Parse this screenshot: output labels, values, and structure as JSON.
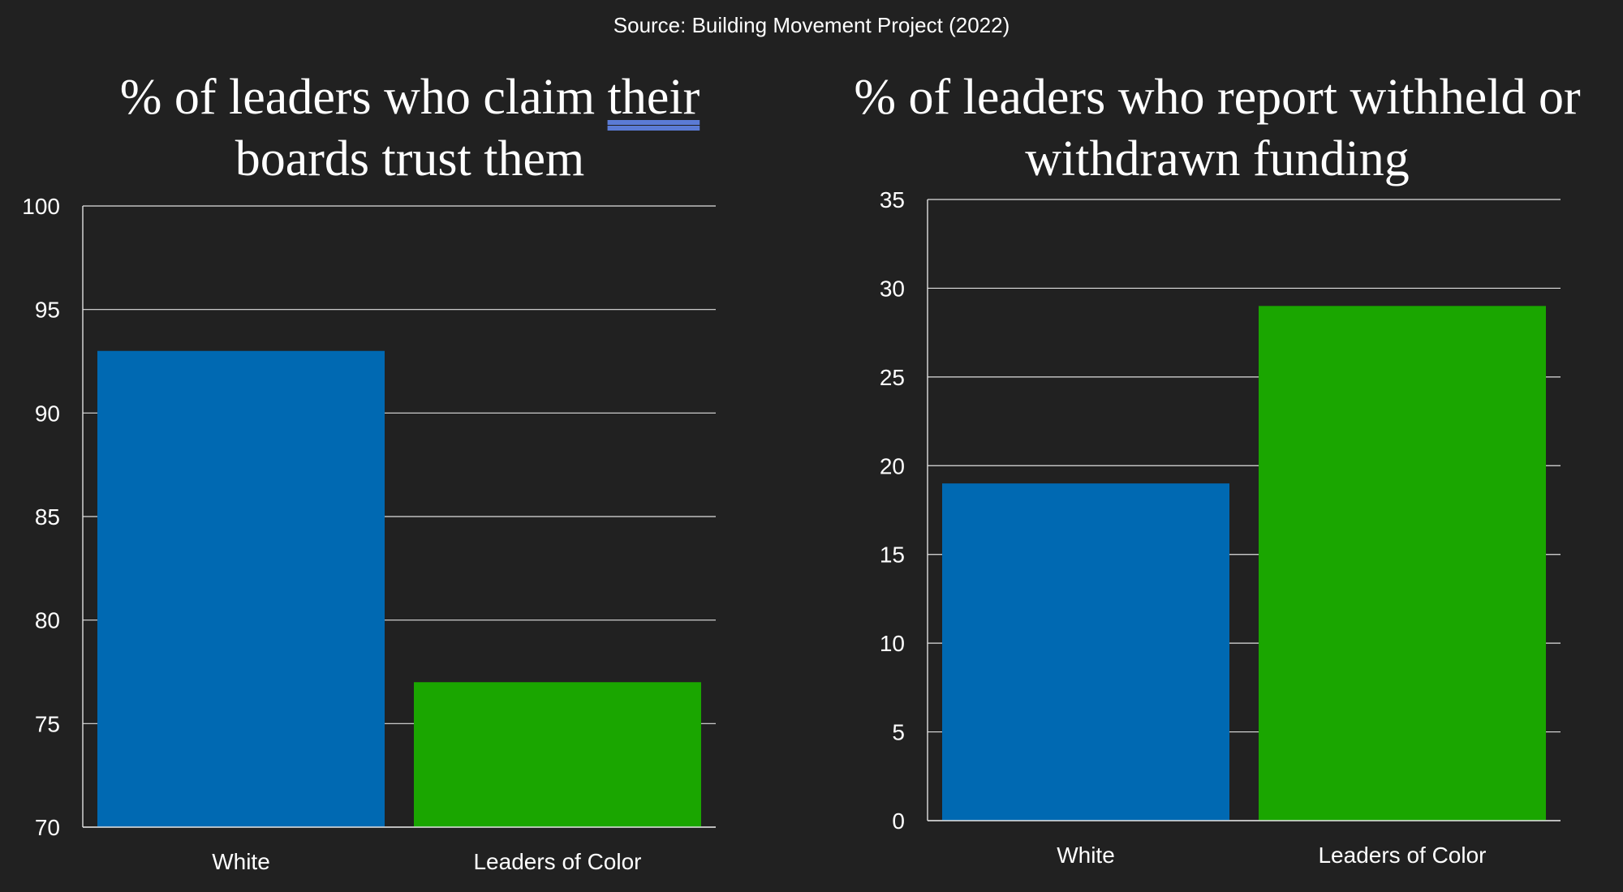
{
  "source": "Source: Building Movement Project (2022)",
  "colors": {
    "background": "#212121",
    "white_bar": "#0069b2",
    "color_bar": "#1aa600",
    "grid": "#e0e0e0",
    "text": "#ffffff"
  },
  "chart_data": [
    {
      "type": "bar",
      "title_parts": [
        "% of leaders who claim ",
        "their",
        " boards trust them"
      ],
      "categories": [
        "White",
        "Leaders of Color"
      ],
      "values": [
        93,
        77
      ],
      "ylim": [
        70,
        100
      ],
      "yticks": [
        "100",
        "95",
        "90",
        "85",
        "80",
        "75",
        "70"
      ],
      "grid": true
    },
    {
      "type": "bar",
      "title": "% of leaders who report withheld or withdrawn funding",
      "categories": [
        "White",
        "Leaders of Color"
      ],
      "values": [
        19,
        29
      ],
      "ylim": [
        0,
        35
      ],
      "yticks": [
        "35",
        "30",
        "25",
        "20",
        "15",
        "10",
        "5",
        "0"
      ],
      "grid": true
    }
  ]
}
